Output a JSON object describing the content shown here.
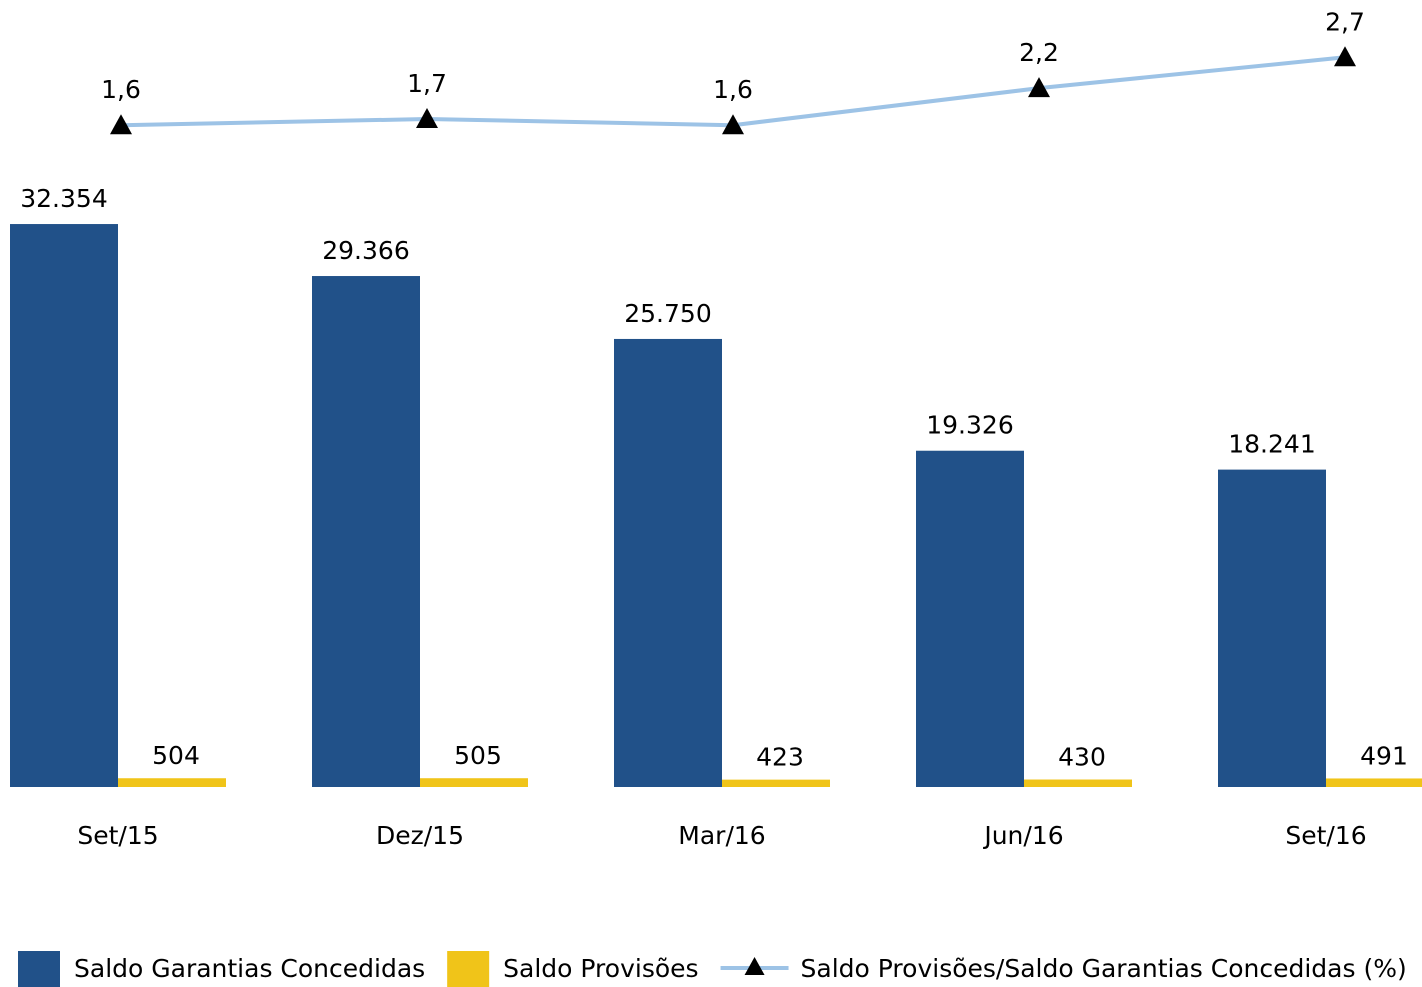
{
  "chart_data": {
    "type": "bar",
    "categories": [
      "Set/15",
      "Dez/15",
      "Mar/16",
      "Jun/16",
      "Set/16"
    ],
    "series": [
      {
        "name": "Saldo Garantias Concedidas",
        "color": "#215189",
        "values": [
          32354,
          29366,
          25750,
          19326,
          18241
        ],
        "value_labels": [
          "32.354",
          "29.366",
          "25.750",
          "19.326",
          "18.241"
        ]
      },
      {
        "name": "Saldo Provisões",
        "color": "#f0c419",
        "values": [
          504,
          505,
          423,
          430,
          491
        ],
        "value_labels": [
          "504",
          "505",
          "423",
          "430",
          "491"
        ]
      },
      {
        "name": "Saldo Provisões/Saldo Garantias Concedidas (%)",
        "type": "line",
        "axis": "y2",
        "color": "#9dc3e6",
        "marker_color": "#000000",
        "values": [
          1.6,
          1.7,
          1.6,
          2.2,
          2.7
        ],
        "value_labels": [
          "1,6",
          "1,7",
          "1,6",
          "2,2",
          "2,7"
        ]
      }
    ],
    "ylim": [
      0,
      35000
    ],
    "y2lim": [
      0,
      4
    ],
    "grid": false
  }
}
